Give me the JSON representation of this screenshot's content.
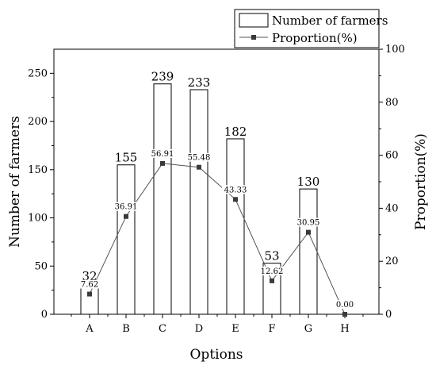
{
  "chart_data": {
    "type": "bar",
    "categories": [
      "A",
      "B",
      "C",
      "D",
      "E",
      "F",
      "G",
      "H"
    ],
    "series": [
      {
        "name": "Number of farmers",
        "type": "bar",
        "axis": "left",
        "values": [
          32,
          155,
          239,
          233,
          182,
          53,
          130,
          0
        ],
        "labels": [
          "32",
          "155",
          "239",
          "233",
          "182",
          "53",
          "130",
          ""
        ]
      },
      {
        "name": "Proportion(%)",
        "type": "line",
        "axis": "right",
        "values": [
          7.62,
          36.91,
          56.91,
          55.48,
          43.33,
          12.62,
          30.95,
          0.0
        ],
        "labels": [
          "7.62",
          "36.91",
          "56.91",
          "55.48",
          "43.33",
          "12.62",
          "30.95",
          "0.00"
        ]
      }
    ],
    "xlabel": "Options",
    "ylabel": "Number of farmers",
    "y2label": "Proportion(%)",
    "ylim": [
      0,
      275
    ],
    "y2lim": [
      0,
      100
    ],
    "yticks": [
      0,
      50,
      100,
      150,
      200,
      250
    ],
    "y2ticks": [
      0,
      20,
      40,
      60,
      80,
      100
    ],
    "legend": "top-right",
    "grid": false
  }
}
